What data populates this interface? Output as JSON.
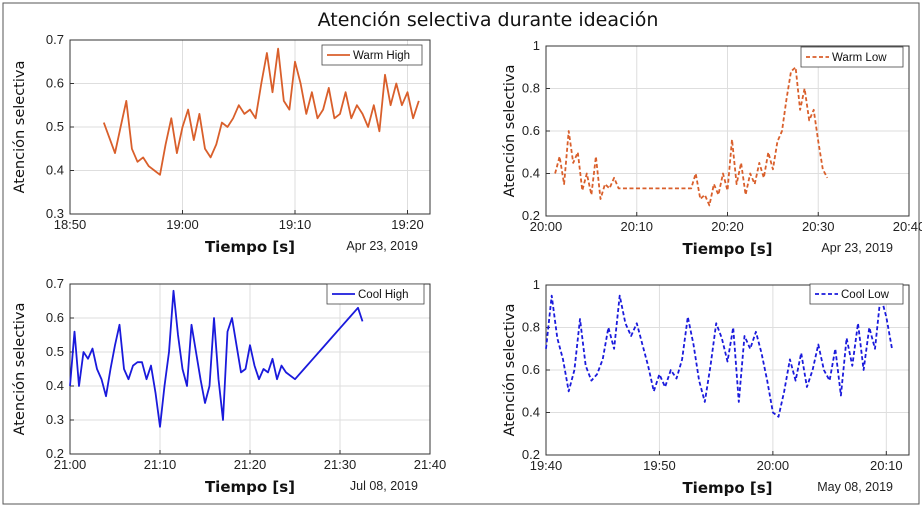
{
  "figure_title": "Atención selectiva durante ideación",
  "chart_data": [
    {
      "type": "line",
      "id": "warm-high",
      "series": [
        {
          "name": "Warm High",
          "color": "#d95f2b",
          "line_style": "solid",
          "x": [
            "18:53",
            "18:54",
            "18:54:30",
            "18:55",
            "18:55:30",
            "18:56",
            "18:56:30",
            "18:57",
            "18:57:30",
            "18:58",
            "18:58:30",
            "18:59",
            "18:59:30",
            "19:00",
            "19:00:30",
            "19:01",
            "19:01:30",
            "19:02",
            "19:02:30",
            "19:03",
            "19:03:30",
            "19:04",
            "19:04:30",
            "19:05",
            "19:05:30",
            "19:06",
            "19:06:30",
            "19:07",
            "19:07:30",
            "19:08",
            "19:08:30",
            "19:09",
            "19:09:30",
            "19:10",
            "19:10:30",
            "19:11",
            "19:11:30",
            "19:12",
            "19:12:30",
            "19:13",
            "19:13:30",
            "19:14",
            "19:14:30",
            "19:15",
            "19:15:30",
            "19:16",
            "19:16:30",
            "19:17",
            "19:17:30",
            "19:18",
            "19:18:30",
            "19:19",
            "19:19:30",
            "19:20",
            "19:20:30",
            "19:21"
          ],
          "y": [
            0.51,
            0.44,
            0.5,
            0.56,
            0.45,
            0.42,
            0.43,
            0.41,
            0.4,
            0.39,
            0.46,
            0.52,
            0.44,
            0.5,
            0.54,
            0.47,
            0.53,
            0.45,
            0.43,
            0.46,
            0.51,
            0.5,
            0.52,
            0.55,
            0.53,
            0.54,
            0.52,
            0.6,
            0.67,
            0.58,
            0.68,
            0.56,
            0.54,
            0.65,
            0.6,
            0.53,
            0.58,
            0.52,
            0.54,
            0.59,
            0.52,
            0.53,
            0.58,
            0.52,
            0.55,
            0.53,
            0.5,
            0.55,
            0.49,
            0.62,
            0.55,
            0.6,
            0.55,
            0.58,
            0.52,
            0.56
          ]
        }
      ],
      "x_ticks": [
        "18:50",
        "19:00",
        "19:10",
        "19:20"
      ],
      "y_ticks": [
        "0.3",
        "0.4",
        "0.5",
        "0.6",
        "0.7"
      ],
      "ylim": [
        0.3,
        0.7
      ],
      "xlabel": "Tiempo [s]",
      "ylabel": "Atención selectiva",
      "date": "Apr 23, 2019",
      "legend_position": "top-right",
      "grid": true
    },
    {
      "type": "line",
      "id": "warm-low",
      "series": [
        {
          "name": "Warm Low",
          "color": "#d95f2b",
          "line_style": "dashed",
          "x": [
            "20:01",
            "20:01:30",
            "20:02",
            "20:02:30",
            "20:03",
            "20:03:30",
            "20:04",
            "20:04:30",
            "20:05",
            "20:05:30",
            "20:06",
            "20:06:30",
            "20:07",
            "20:07:30",
            "20:08",
            "20:16",
            "20:16:30",
            "20:17",
            "20:17:30",
            "20:18",
            "20:18:30",
            "20:19",
            "20:19:30",
            "20:20",
            "20:20:30",
            "20:21",
            "20:21:30",
            "20:22",
            "20:22:30",
            "20:23",
            "20:23:30",
            "20:24",
            "20:24:30",
            "20:25",
            "20:25:30",
            "20:26",
            "20:26:30",
            "20:27",
            "20:27:30",
            "20:28",
            "20:28:30",
            "20:29",
            "20:29:30",
            "20:30",
            "20:30:30",
            "20:31"
          ],
          "y": [
            0.4,
            0.48,
            0.35,
            0.6,
            0.45,
            0.5,
            0.32,
            0.4,
            0.3,
            0.48,
            0.28,
            0.35,
            0.33,
            0.38,
            0.33,
            0.33,
            0.4,
            0.28,
            0.3,
            0.25,
            0.35,
            0.3,
            0.4,
            0.32,
            0.56,
            0.35,
            0.45,
            0.3,
            0.4,
            0.35,
            0.45,
            0.38,
            0.5,
            0.42,
            0.55,
            0.6,
            0.75,
            0.88,
            0.9,
            0.7,
            0.8,
            0.65,
            0.7,
            0.55,
            0.42,
            0.38
          ]
        }
      ],
      "x_ticks": [
        "20:00",
        "20:10",
        "20:20",
        "20:30",
        "20:40"
      ],
      "y_ticks": [
        "0.2",
        "0.4",
        "0.6",
        "0.8",
        "1"
      ],
      "ylim": [
        0.2,
        1.0
      ],
      "xlabel": "Tiempo [s]",
      "ylabel": "Atención selectiva",
      "date": "Apr 23, 2019",
      "legend_position": "top-right",
      "grid": true
    },
    {
      "type": "line",
      "id": "cool-high",
      "series": [
        {
          "name": "Cool High",
          "color": "#1a1adc",
          "line_style": "solid",
          "x": [
            "21:00",
            "21:00:30",
            "21:01",
            "21:01:30",
            "21:02",
            "21:02:30",
            "21:03",
            "21:03:30",
            "21:04",
            "21:04:30",
            "21:05",
            "21:05:30",
            "21:06",
            "21:06:30",
            "21:07",
            "21:07:30",
            "21:08",
            "21:08:30",
            "21:09",
            "21:09:30",
            "21:10",
            "21:10:30",
            "21:11",
            "21:11:30",
            "21:12",
            "21:12:30",
            "21:13",
            "21:13:30",
            "21:14",
            "21:14:30",
            "21:15",
            "21:15:30",
            "21:16",
            "21:16:30",
            "21:17",
            "21:17:30",
            "21:18",
            "21:18:30",
            "21:19",
            "21:19:30",
            "21:20",
            "21:20:30",
            "21:21",
            "21:21:30",
            "21:22",
            "21:22:30",
            "21:23",
            "21:23:30",
            "21:24",
            "21:25",
            "21:26",
            "21:27",
            "21:28",
            "21:29",
            "21:30",
            "21:31",
            "21:32",
            "21:32:30"
          ],
          "y": [
            0.4,
            0.56,
            0.4,
            0.5,
            0.48,
            0.51,
            0.45,
            0.42,
            0.37,
            0.45,
            0.52,
            0.58,
            0.45,
            0.42,
            0.46,
            0.47,
            0.47,
            0.42,
            0.46,
            0.38,
            0.28,
            0.4,
            0.5,
            0.68,
            0.55,
            0.45,
            0.4,
            0.58,
            0.5,
            0.42,
            0.35,
            0.4,
            0.6,
            0.42,
            0.3,
            0.56,
            0.6,
            0.52,
            0.44,
            0.45,
            0.52,
            0.46,
            0.42,
            0.45,
            0.44,
            0.48,
            0.42,
            0.46,
            0.44,
            0.42,
            0.45,
            0.48,
            0.51,
            0.54,
            0.57,
            0.6,
            0.63,
            0.59
          ]
        }
      ],
      "x_ticks": [
        "21:00",
        "21:10",
        "21:20",
        "21:30",
        "21:40"
      ],
      "y_ticks": [
        "0.2",
        "0.3",
        "0.4",
        "0.5",
        "0.6",
        "0.7"
      ],
      "ylim": [
        0.2,
        0.7
      ],
      "xlabel": "Tiempo [s]",
      "ylabel": "Atención selectiva",
      "date": "Jul 08, 2019",
      "legend_position": "top-right",
      "grid": true
    },
    {
      "type": "line",
      "id": "cool-low",
      "series": [
        {
          "name": "Cool Low",
          "color": "#1a1adc",
          "line_style": "dashed",
          "x": [
            "19:40",
            "19:40:30",
            "19:41",
            "19:41:30",
            "19:42",
            "19:42:30",
            "19:43",
            "19:43:30",
            "19:44",
            "19:44:30",
            "19:45",
            "19:45:30",
            "19:46",
            "19:46:30",
            "19:47",
            "19:47:30",
            "19:48",
            "19:48:30",
            "19:49",
            "19:49:30",
            "19:50",
            "19:50:30",
            "19:51",
            "19:51:30",
            "19:52",
            "19:52:30",
            "19:53",
            "19:53:30",
            "19:54",
            "19:54:30",
            "19:55",
            "19:55:30",
            "19:56",
            "19:56:30",
            "19:57",
            "19:57:30",
            "19:58",
            "19:58:30",
            "19:59",
            "19:59:30",
            "20:00",
            "20:00:30",
            "20:01",
            "20:01:30",
            "20:02",
            "20:02:30",
            "20:03",
            "20:03:30",
            "20:04",
            "20:04:30",
            "20:05",
            "20:05:30",
            "20:06",
            "20:06:30",
            "20:07",
            "20:07:30",
            "20:08",
            "20:08:30",
            "20:09",
            "20:09:30",
            "20:10",
            "20:10:30"
          ],
          "y": [
            0.7,
            0.95,
            0.75,
            0.65,
            0.5,
            0.6,
            0.84,
            0.62,
            0.55,
            0.58,
            0.65,
            0.8,
            0.7,
            0.95,
            0.82,
            0.76,
            0.82,
            0.72,
            0.62,
            0.5,
            0.58,
            0.52,
            0.6,
            0.56,
            0.65,
            0.85,
            0.72,
            0.55,
            0.45,
            0.62,
            0.82,
            0.75,
            0.64,
            0.8,
            0.45,
            0.76,
            0.7,
            0.78,
            0.68,
            0.55,
            0.4,
            0.38,
            0.5,
            0.65,
            0.55,
            0.68,
            0.52,
            0.6,
            0.72,
            0.6,
            0.55,
            0.7,
            0.48,
            0.75,
            0.62,
            0.82,
            0.6,
            0.8,
            0.7,
            0.95,
            0.85,
            0.7
          ]
        }
      ],
      "x_ticks": [
        "19:40",
        "19:50",
        "20:00",
        "20:10"
      ],
      "y_ticks": [
        "0.2",
        "0.4",
        "0.6",
        "0.8",
        "1"
      ],
      "ylim": [
        0.2,
        1.0
      ],
      "xlabel": "Tiempo [s]",
      "ylabel": "Atención selectiva",
      "date": "May 08, 2019",
      "legend_position": "top-right",
      "grid": true
    }
  ]
}
